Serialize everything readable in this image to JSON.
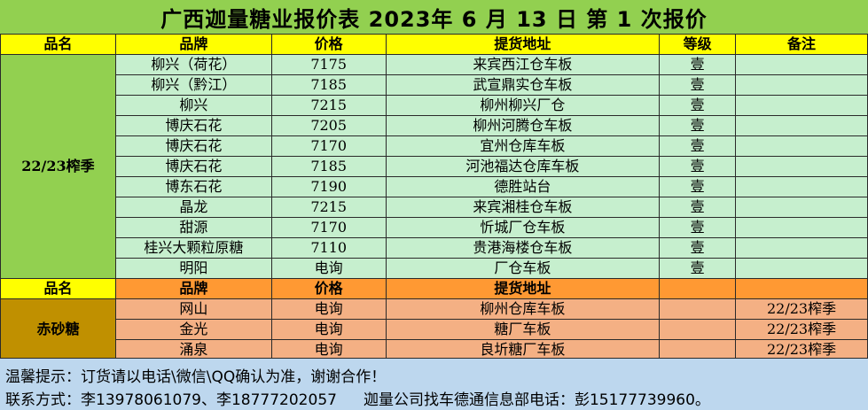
{
  "title": "广西迦量糖业报价表 2023年 6 月 13 日 第 1 次报价",
  "header_green": [
    "品名",
    "品牌",
    "价格",
    "提货地址",
    "等级",
    "备注"
  ],
  "season_green": "22/23榨季",
  "rows_green": [
    {
      "brand": "柳兴（荷花）",
      "price": "7175",
      "address": "来宾西江仓车板",
      "grade": "壹",
      "note": ""
    },
    {
      "brand": "柳兴（黔江）",
      "price": "7185",
      "address": "武宣鼎实仓车板",
      "grade": "壹",
      "note": ""
    },
    {
      "brand": "柳兴",
      "price": "7215",
      "address": "柳州柳兴厂仓",
      "grade": "壹",
      "note": ""
    },
    {
      "brand": "博庆石花",
      "price": "7205",
      "address": "柳州河腾仓车板",
      "grade": "壹",
      "note": ""
    },
    {
      "brand": "博庆石花",
      "price": "7170",
      "address": "宜州仓库车板",
      "grade": "壹",
      "note": ""
    },
    {
      "brand": "博庆石花",
      "price": "7185",
      "address": "河池福达仓库车板",
      "grade": "壹",
      "note": ""
    },
    {
      "brand": "博东石花",
      "price": "7190",
      "address": "德胜站台",
      "grade": "壹",
      "note": ""
    },
    {
      "brand": "晶龙",
      "price": "7215",
      "address": "来宾湘桂仓车板",
      "grade": "壹",
      "note": ""
    },
    {
      "brand": "甜源",
      "price": "7170",
      "address": "忻城厂仓车板",
      "grade": "壹",
      "note": ""
    },
    {
      "brand": "桂兴大颗粒原糖",
      "price": "7110",
      "address": "贵港海楼仓车板",
      "grade": "壹",
      "note": ""
    },
    {
      "brand": "明阳",
      "price": "电询",
      "address": "厂仓车板",
      "grade": "壹",
      "note": ""
    }
  ],
  "header_orange": [
    "品名",
    "品牌",
    "价格",
    "提货地址",
    "",
    ""
  ],
  "season_orange": "赤砂糖",
  "rows_orange": [
    {
      "brand": "网山",
      "price": "电询",
      "address": "柳州仓库车板",
      "grade": "",
      "note": "22/23榨季"
    },
    {
      "brand": "金光",
      "price": "电询",
      "address": "糖厂车板",
      "grade": "",
      "note": "22/23榨季"
    },
    {
      "brand": "涌泉",
      "price": "电询",
      "address": "良圻糖厂车板",
      "grade": "",
      "note": "22/23榨季"
    }
  ],
  "footer": {
    "line1": "温馨提示：订货请以电话\\微信\\QQ确认为准，谢谢合作！",
    "contact": "联系方式：李13978061079、李18777202057",
    "dispatch": "迦量公司找车德通信息部电话：彭15177739960。"
  },
  "colors": {
    "title_bg": "#92d050",
    "header_yellow": "#ffff00",
    "row_green": "#c6efce",
    "header_orange": "#ff9933",
    "row_orange": "#f4b084",
    "season_orange": "#c09000",
    "footer_bg": "#bdd7ee"
  }
}
